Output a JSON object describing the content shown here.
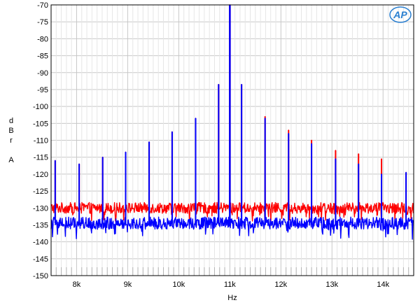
{
  "chart_data": {
    "type": "line",
    "title": "",
    "xlabel": "Hz",
    "ylabel_lines": [
      "d",
      "B",
      "r",
      "",
      "A"
    ],
    "xlim": [
      7500,
      14600
    ],
    "ylim": [
      -150,
      -70
    ],
    "x_scale": "linear",
    "grid": true,
    "x_ticks": [
      {
        "value": 8000,
        "label": "8k"
      },
      {
        "value": 9000,
        "label": "9k"
      },
      {
        "value": 10000,
        "label": "10k"
      },
      {
        "value": 11000,
        "label": "11k"
      },
      {
        "value": 12000,
        "label": "12k"
      },
      {
        "value": 13000,
        "label": "13k"
      },
      {
        "value": 14000,
        "label": "14k"
      }
    ],
    "y_ticks": [
      -70,
      -75,
      -80,
      -85,
      -90,
      -95,
      -100,
      -105,
      -110,
      -115,
      -120,
      -125,
      -130,
      -135,
      -140,
      -145,
      -150
    ],
    "series": [
      {
        "color": "#ff0000",
        "noise_floor": -130,
        "peaks": [
          {
            "x": 7580,
            "y": -116
          },
          {
            "x": 8050,
            "y": -117
          },
          {
            "x": 8510,
            "y": -115
          },
          {
            "x": 8960,
            "y": -113.5
          },
          {
            "x": 9420,
            "y": -110.5
          },
          {
            "x": 9870,
            "y": -107.5
          },
          {
            "x": 10330,
            "y": -103.5
          },
          {
            "x": 10780,
            "y": -93.5
          },
          {
            "x": 11000,
            "y": -70
          },
          {
            "x": 11230,
            "y": -93.5
          },
          {
            "x": 11690,
            "y": -103
          },
          {
            "x": 12150,
            "y": -107
          },
          {
            "x": 12600,
            "y": -110
          },
          {
            "x": 13070,
            "y": -113
          },
          {
            "x": 13520,
            "y": -114
          },
          {
            "x": 13970,
            "y": -115.5
          },
          {
            "x": 14450,
            "y": -119.5
          }
        ]
      },
      {
        "color": "#0000ff",
        "noise_floor": -134.5,
        "peaks": [
          {
            "x": 7580,
            "y": -116
          },
          {
            "x": 8050,
            "y": -117
          },
          {
            "x": 8510,
            "y": -115
          },
          {
            "x": 8960,
            "y": -113.5
          },
          {
            "x": 9420,
            "y": -110.5
          },
          {
            "x": 9870,
            "y": -107.5
          },
          {
            "x": 10330,
            "y": -103.5
          },
          {
            "x": 10780,
            "y": -93.5
          },
          {
            "x": 11000,
            "y": -70
          },
          {
            "x": 11230,
            "y": -93.5
          },
          {
            "x": 11690,
            "y": -103.5
          },
          {
            "x": 12150,
            "y": -108
          },
          {
            "x": 12600,
            "y": -111
          },
          {
            "x": 13070,
            "y": -115.5
          },
          {
            "x": 13520,
            "y": -117
          },
          {
            "x": 13970,
            "y": -120
          },
          {
            "x": 14450,
            "y": -119.5
          }
        ]
      }
    ]
  },
  "logo": {
    "text": "AP",
    "color": "#2a7fd0"
  }
}
